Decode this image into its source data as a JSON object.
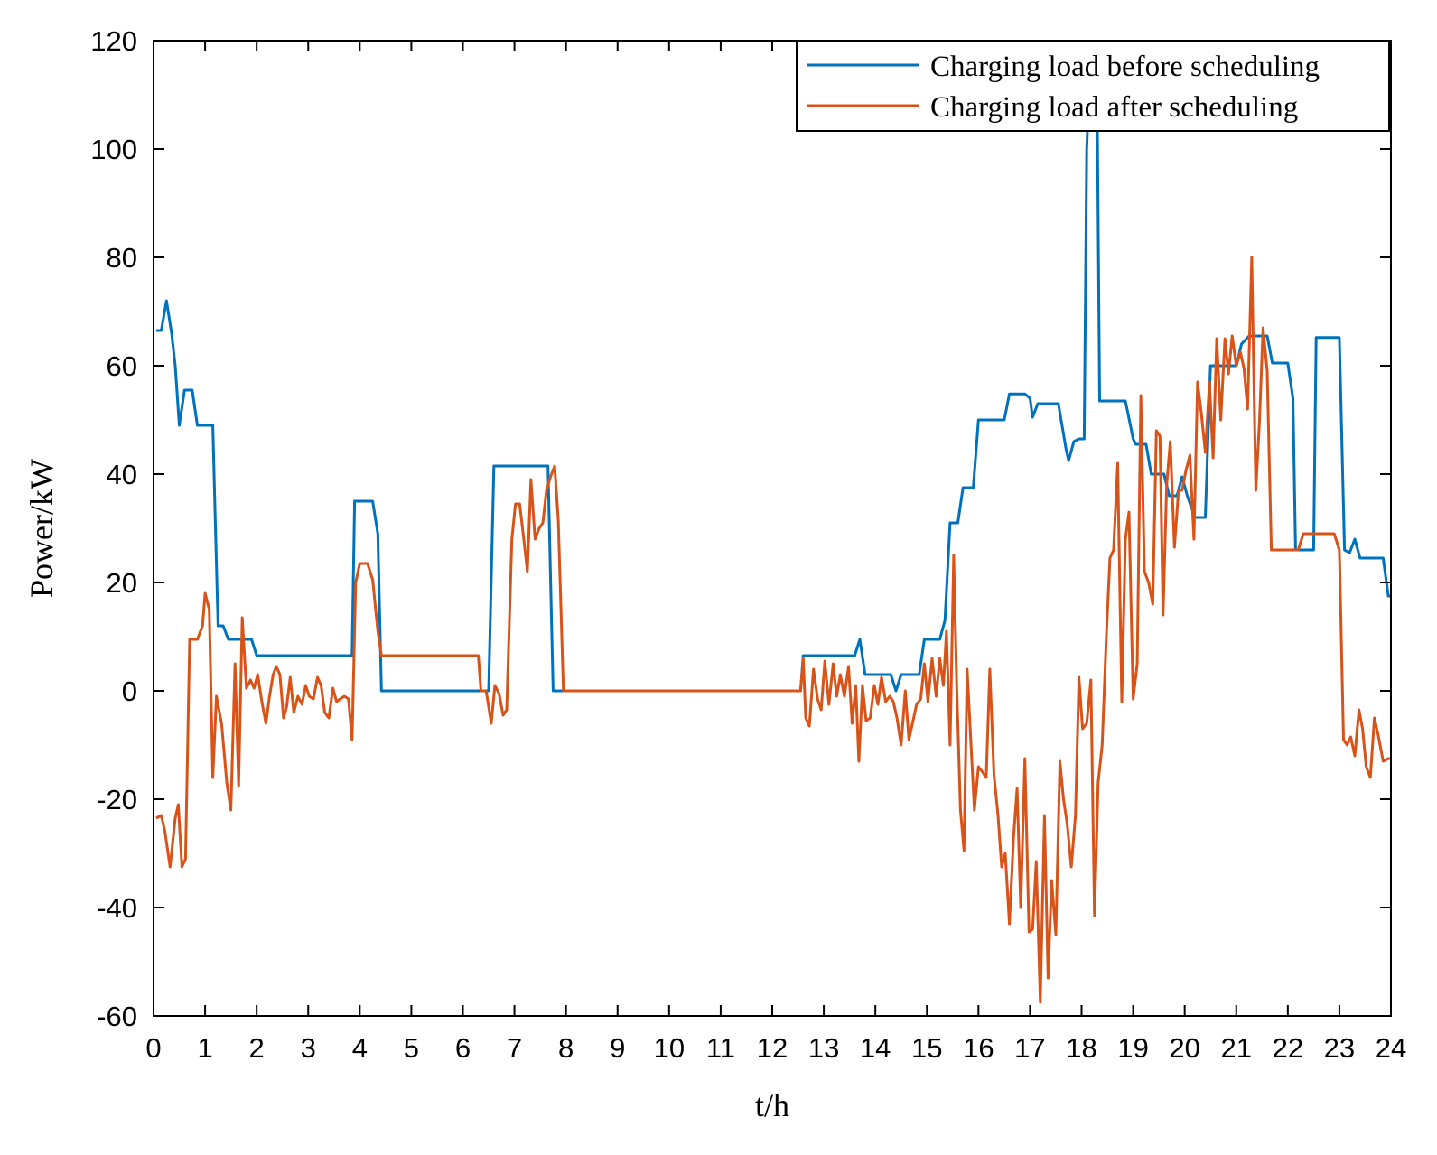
{
  "chart_data": {
    "type": "line",
    "title": "",
    "xlabel": "t/h",
    "ylabel": "Power/kW",
    "xlim": [
      0,
      24
    ],
    "ylim": [
      -60,
      120
    ],
    "x_ticks": [
      0,
      1,
      2,
      3,
      4,
      5,
      6,
      7,
      8,
      9,
      10,
      11,
      12,
      13,
      14,
      15,
      16,
      17,
      18,
      19,
      20,
      21,
      22,
      23,
      24
    ],
    "y_ticks": [
      -60,
      -40,
      -20,
      0,
      20,
      40,
      60,
      80,
      100,
      120
    ],
    "grid": false,
    "legend_position": "top-right",
    "series": [
      {
        "name": "Charging load before scheduling",
        "color": "#0072BD",
        "points": [
          [
            0.05,
            66.5
          ],
          [
            0.15,
            66.5
          ],
          [
            0.25,
            72
          ],
          [
            0.35,
            66
          ],
          [
            0.42,
            60
          ],
          [
            0.5,
            49
          ],
          [
            0.6,
            55.5
          ],
          [
            0.75,
            55.5
          ],
          [
            0.85,
            49
          ],
          [
            1.15,
            49
          ],
          [
            1.25,
            12
          ],
          [
            1.35,
            12
          ],
          [
            1.45,
            9.5
          ],
          [
            1.9,
            9.5
          ],
          [
            2.0,
            6.5
          ],
          [
            3.85,
            6.5
          ],
          [
            3.9,
            35
          ],
          [
            4.25,
            35
          ],
          [
            4.35,
            29
          ],
          [
            4.42,
            0
          ],
          [
            6.3,
            0
          ],
          [
            6.5,
            0
          ],
          [
            6.6,
            41.5
          ],
          [
            7.65,
            41.5
          ],
          [
            7.75,
            0
          ],
          [
            8.0,
            0
          ],
          [
            12.55,
            0
          ],
          [
            12.6,
            6.5
          ],
          [
            13.6,
            6.5
          ],
          [
            13.7,
            9.5
          ],
          [
            13.8,
            3
          ],
          [
            14.3,
            3
          ],
          [
            14.4,
            0
          ],
          [
            14.5,
            3
          ],
          [
            14.85,
            3
          ],
          [
            14.95,
            9.5
          ],
          [
            15.25,
            9.5
          ],
          [
            15.35,
            13
          ],
          [
            15.45,
            31
          ],
          [
            15.6,
            31
          ],
          [
            15.7,
            37.5
          ],
          [
            15.9,
            37.5
          ],
          [
            16.0,
            50
          ],
          [
            16.5,
            50
          ],
          [
            16.6,
            54.8
          ],
          [
            16.9,
            54.8
          ],
          [
            17.0,
            54
          ],
          [
            17.05,
            50.5
          ],
          [
            17.15,
            53
          ],
          [
            17.55,
            53
          ],
          [
            17.7,
            44.5
          ],
          [
            17.75,
            42.5
          ],
          [
            17.85,
            46
          ],
          [
            17.95,
            46.5
          ],
          [
            18.05,
            46.5
          ],
          [
            18.1,
            100
          ],
          [
            18.15,
            112
          ],
          [
            18.22,
            105
          ],
          [
            18.3,
            112
          ],
          [
            18.35,
            53.5
          ],
          [
            18.85,
            53.5
          ],
          [
            19.0,
            46.5
          ],
          [
            19.05,
            45.5
          ],
          [
            19.25,
            45.5
          ],
          [
            19.35,
            40
          ],
          [
            19.6,
            40
          ],
          [
            19.7,
            36
          ],
          [
            19.85,
            36
          ],
          [
            19.95,
            39.5
          ],
          [
            20.05,
            36
          ],
          [
            20.2,
            32
          ],
          [
            20.4,
            32
          ],
          [
            20.5,
            60
          ],
          [
            20.9,
            60
          ],
          [
            21.0,
            60
          ],
          [
            21.1,
            64
          ],
          [
            21.25,
            65.5
          ],
          [
            21.6,
            65.5
          ],
          [
            21.7,
            60.5
          ],
          [
            22.0,
            60.5
          ],
          [
            22.1,
            54
          ],
          [
            22.15,
            26
          ],
          [
            22.5,
            26
          ],
          [
            22.55,
            65.2
          ],
          [
            23.0,
            65.2
          ],
          [
            23.1,
            26
          ],
          [
            23.2,
            25.5
          ],
          [
            23.3,
            28
          ],
          [
            23.4,
            24.5
          ],
          [
            23.85,
            24.5
          ],
          [
            23.95,
            17.5
          ],
          [
            24.0,
            17.5
          ]
        ]
      },
      {
        "name": "Charging load after scheduling",
        "color": "#D95319",
        "points": [
          [
            0.05,
            -23.5
          ],
          [
            0.15,
            -23
          ],
          [
            0.22,
            -26
          ],
          [
            0.32,
            -32.5
          ],
          [
            0.42,
            -23.5
          ],
          [
            0.48,
            -21
          ],
          [
            0.55,
            -32.5
          ],
          [
            0.62,
            -31
          ],
          [
            0.7,
            9.5
          ],
          [
            0.85,
            9.5
          ],
          [
            0.95,
            12
          ],
          [
            1.0,
            18
          ],
          [
            1.08,
            15
          ],
          [
            1.15,
            -16
          ],
          [
            1.22,
            -1
          ],
          [
            1.32,
            -6
          ],
          [
            1.42,
            -17
          ],
          [
            1.5,
            -22
          ],
          [
            1.58,
            5
          ],
          [
            1.65,
            -17.5
          ],
          [
            1.72,
            13.5
          ],
          [
            1.8,
            0.5
          ],
          [
            1.88,
            2
          ],
          [
            1.95,
            0.5
          ],
          [
            2.02,
            3
          ],
          [
            2.1,
            -2
          ],
          [
            2.18,
            -6
          ],
          [
            2.25,
            -1
          ],
          [
            2.32,
            3
          ],
          [
            2.38,
            4.5
          ],
          [
            2.45,
            3
          ],
          [
            2.52,
            -5
          ],
          [
            2.58,
            -3
          ],
          [
            2.65,
            2.5
          ],
          [
            2.72,
            -4
          ],
          [
            2.8,
            -1
          ],
          [
            2.88,
            -2.5
          ],
          [
            2.95,
            1
          ],
          [
            3.02,
            -1
          ],
          [
            3.1,
            -1.5
          ],
          [
            3.18,
            2.5
          ],
          [
            3.25,
            1
          ],
          [
            3.32,
            -4
          ],
          [
            3.4,
            -5
          ],
          [
            3.48,
            0.5
          ],
          [
            3.55,
            -2
          ],
          [
            3.62,
            -1.5
          ],
          [
            3.7,
            -1
          ],
          [
            3.78,
            -1.5
          ],
          [
            3.85,
            -9
          ],
          [
            3.92,
            20
          ],
          [
            4.0,
            23.5
          ],
          [
            4.15,
            23.5
          ],
          [
            4.25,
            20.5
          ],
          [
            4.35,
            11
          ],
          [
            4.42,
            6.5
          ],
          [
            6.3,
            6.5
          ],
          [
            6.35,
            0
          ],
          [
            6.45,
            0
          ],
          [
            6.55,
            -6
          ],
          [
            6.62,
            1
          ],
          [
            6.7,
            -0.5
          ],
          [
            6.78,
            -4.5
          ],
          [
            6.85,
            -3.5
          ],
          [
            6.95,
            28
          ],
          [
            7.02,
            34.5
          ],
          [
            7.1,
            34.5
          ],
          [
            7.18,
            28
          ],
          [
            7.25,
            22
          ],
          [
            7.32,
            39
          ],
          [
            7.4,
            28
          ],
          [
            7.48,
            30
          ],
          [
            7.55,
            31
          ],
          [
            7.62,
            37
          ],
          [
            7.7,
            39.5
          ],
          [
            7.78,
            41.5
          ],
          [
            7.85,
            31.5
          ],
          [
            7.95,
            0
          ],
          [
            12.55,
            0
          ],
          [
            12.6,
            6
          ],
          [
            12.65,
            -5
          ],
          [
            12.72,
            -6.5
          ],
          [
            12.8,
            4
          ],
          [
            12.88,
            -1.5
          ],
          [
            12.95,
            -3.5
          ],
          [
            13.02,
            5.5
          ],
          [
            13.1,
            -2.5
          ],
          [
            13.18,
            5
          ],
          [
            13.25,
            -1
          ],
          [
            13.32,
            3
          ],
          [
            13.4,
            -1
          ],
          [
            13.48,
            4.5
          ],
          [
            13.55,
            -6
          ],
          [
            13.62,
            1
          ],
          [
            13.68,
            -13
          ],
          [
            13.75,
            1
          ],
          [
            13.82,
            -5.5
          ],
          [
            13.9,
            -5
          ],
          [
            13.98,
            1
          ],
          [
            14.05,
            -2.5
          ],
          [
            14.12,
            2.5
          ],
          [
            14.2,
            -2
          ],
          [
            14.28,
            -1
          ],
          [
            14.35,
            -2
          ],
          [
            14.42,
            -5
          ],
          [
            14.5,
            -10
          ],
          [
            14.58,
            0
          ],
          [
            14.65,
            -9
          ],
          [
            14.72,
            -6
          ],
          [
            14.8,
            -2.5
          ],
          [
            14.88,
            -1.5
          ],
          [
            14.95,
            5
          ],
          [
            15.02,
            -2
          ],
          [
            15.1,
            6
          ],
          [
            15.18,
            -1
          ],
          [
            15.25,
            6
          ],
          [
            15.32,
            1
          ],
          [
            15.38,
            11
          ],
          [
            15.45,
            -10
          ],
          [
            15.52,
            25
          ],
          [
            15.58,
            0
          ],
          [
            15.65,
            -22
          ],
          [
            15.72,
            -29.5
          ],
          [
            15.78,
            4
          ],
          [
            15.85,
            -9
          ],
          [
            15.92,
            -22
          ],
          [
            16.0,
            -14
          ],
          [
            16.08,
            -15
          ],
          [
            16.15,
            -16
          ],
          [
            16.22,
            4
          ],
          [
            16.3,
            -15.5
          ],
          [
            16.38,
            -23
          ],
          [
            16.45,
            -32.5
          ],
          [
            16.52,
            -30
          ],
          [
            16.6,
            -43
          ],
          [
            16.68,
            -27
          ],
          [
            16.75,
            -18
          ],
          [
            16.82,
            -40
          ],
          [
            16.9,
            -12.5
          ],
          [
            16.98,
            -44.5
          ],
          [
            17.05,
            -44
          ],
          [
            17.12,
            -31.5
          ],
          [
            17.2,
            -57.5
          ],
          [
            17.28,
            -23
          ],
          [
            17.35,
            -53
          ],
          [
            17.42,
            -35
          ],
          [
            17.5,
            -45
          ],
          [
            17.58,
            -13
          ],
          [
            17.65,
            -20
          ],
          [
            17.72,
            -24.5
          ],
          [
            17.8,
            -32.5
          ],
          [
            17.88,
            -23
          ],
          [
            17.95,
            2.5
          ],
          [
            18.02,
            -7
          ],
          [
            18.1,
            -6
          ],
          [
            18.18,
            2
          ],
          [
            18.25,
            -41.5
          ],
          [
            18.32,
            -17
          ],
          [
            18.4,
            -10
          ],
          [
            18.48,
            10
          ],
          [
            18.55,
            24.5
          ],
          [
            18.62,
            26
          ],
          [
            18.7,
            42
          ],
          [
            18.78,
            -2
          ],
          [
            18.85,
            28
          ],
          [
            18.92,
            33
          ],
          [
            19.0,
            -1.5
          ],
          [
            19.08,
            5
          ],
          [
            19.15,
            54.5
          ],
          [
            19.22,
            22
          ],
          [
            19.3,
            20
          ],
          [
            19.38,
            16
          ],
          [
            19.45,
            48
          ],
          [
            19.52,
            47
          ],
          [
            19.58,
            14
          ],
          [
            19.65,
            38
          ],
          [
            19.72,
            46
          ],
          [
            19.8,
            26.5
          ],
          [
            19.88,
            37
          ],
          [
            19.95,
            37
          ],
          [
            20.02,
            40.5
          ],
          [
            20.1,
            43.5
          ],
          [
            20.18,
            28
          ],
          [
            20.25,
            57
          ],
          [
            20.32,
            51.5
          ],
          [
            20.4,
            44
          ],
          [
            20.48,
            57
          ],
          [
            20.55,
            43
          ],
          [
            20.62,
            65
          ],
          [
            20.7,
            50
          ],
          [
            20.78,
            65
          ],
          [
            20.85,
            58.5
          ],
          [
            20.92,
            65.5
          ],
          [
            21.0,
            60
          ],
          [
            21.08,
            62.5
          ],
          [
            21.15,
            59.5
          ],
          [
            21.22,
            52
          ],
          [
            21.3,
            80
          ],
          [
            21.38,
            37
          ],
          [
            21.45,
            49.5
          ],
          [
            21.52,
            67
          ],
          [
            21.6,
            59
          ],
          [
            21.68,
            26
          ],
          [
            22.0,
            26
          ],
          [
            22.1,
            26
          ],
          [
            22.2,
            26
          ],
          [
            22.3,
            29
          ],
          [
            22.9,
            29
          ],
          [
            23.0,
            26
          ],
          [
            23.08,
            -9
          ],
          [
            23.15,
            -10
          ],
          [
            23.22,
            -8.5
          ],
          [
            23.3,
            -12
          ],
          [
            23.38,
            -3.5
          ],
          [
            23.45,
            -7
          ],
          [
            23.52,
            -14
          ],
          [
            23.6,
            -16
          ],
          [
            23.68,
            -5
          ],
          [
            23.75,
            -8
          ],
          [
            23.85,
            -13
          ],
          [
            23.95,
            -12.5
          ],
          [
            24.0,
            -12.5
          ]
        ]
      }
    ]
  }
}
